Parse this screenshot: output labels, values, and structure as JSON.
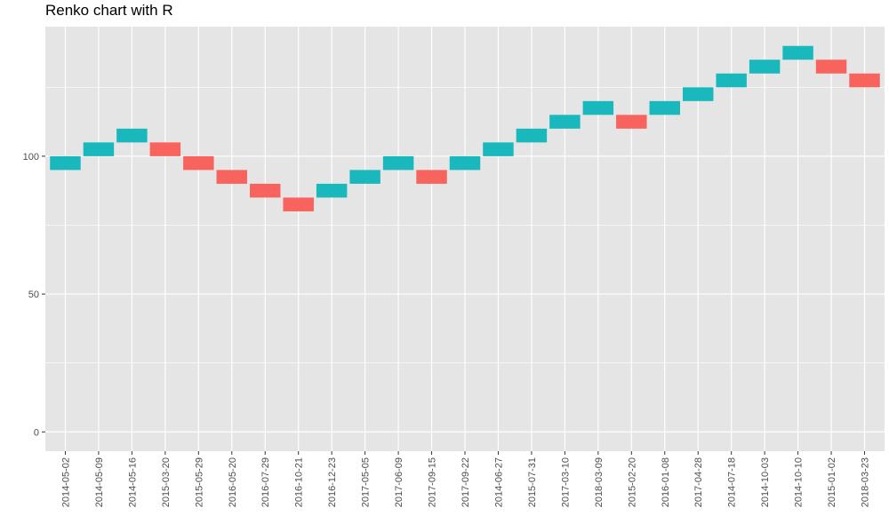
{
  "chart_data": {
    "type": "bar",
    "subtype": "renko",
    "title": "Renko chart with R",
    "xlabel": "",
    "ylabel": "",
    "ylim": [
      -7,
      147
    ],
    "yticks": [
      0,
      50,
      100
    ],
    "grid": true,
    "legend": "none",
    "colors": {
      "up": "#19B8BC",
      "down": "#F8645D",
      "panel": "#E5E5E5",
      "grid": "#FFFFFF"
    },
    "categories": [
      "2014-05-02",
      "2014-05-09",
      "2014-05-16",
      "2015-03-20",
      "2015-05-29",
      "2016-05-20",
      "2016-07-29",
      "2016-10-21",
      "2016-12-23",
      "2017-05-05",
      "2017-06-09",
      "2017-09-15",
      "2017-09-22",
      "2014-06-27",
      "2015-07-31",
      "2017-03-10",
      "2018-03-09",
      "2015-02-20",
      "2016-01-08",
      "2017-04-28",
      "2014-07-18",
      "2014-10-03",
      "2014-10-10",
      "2015-01-02",
      "2018-03-23"
    ],
    "bricks": [
      {
        "low": 95,
        "high": 100,
        "direction": "up"
      },
      {
        "low": 100,
        "high": 105,
        "direction": "up"
      },
      {
        "low": 105,
        "high": 110,
        "direction": "up"
      },
      {
        "low": 100,
        "high": 105,
        "direction": "down"
      },
      {
        "low": 95,
        "high": 100,
        "direction": "down"
      },
      {
        "low": 90,
        "high": 95,
        "direction": "down"
      },
      {
        "low": 85,
        "high": 90,
        "direction": "down"
      },
      {
        "low": 80,
        "high": 85,
        "direction": "down"
      },
      {
        "low": 85,
        "high": 90,
        "direction": "up"
      },
      {
        "low": 90,
        "high": 95,
        "direction": "up"
      },
      {
        "low": 95,
        "high": 100,
        "direction": "up"
      },
      {
        "low": 90,
        "high": 95,
        "direction": "down"
      },
      {
        "low": 95,
        "high": 100,
        "direction": "up"
      },
      {
        "low": 100,
        "high": 105,
        "direction": "up"
      },
      {
        "low": 105,
        "high": 110,
        "direction": "up"
      },
      {
        "low": 110,
        "high": 115,
        "direction": "up"
      },
      {
        "low": 115,
        "high": 120,
        "direction": "up"
      },
      {
        "low": 110,
        "high": 115,
        "direction": "down"
      },
      {
        "low": 115,
        "high": 120,
        "direction": "up"
      },
      {
        "low": 120,
        "high": 125,
        "direction": "up"
      },
      {
        "low": 125,
        "high": 130,
        "direction": "up"
      },
      {
        "low": 130,
        "high": 135,
        "direction": "up"
      },
      {
        "low": 135,
        "high": 140,
        "direction": "up"
      },
      {
        "low": 130,
        "high": 135,
        "direction": "down"
      },
      {
        "low": 125,
        "high": 130,
        "direction": "down"
      }
    ]
  }
}
